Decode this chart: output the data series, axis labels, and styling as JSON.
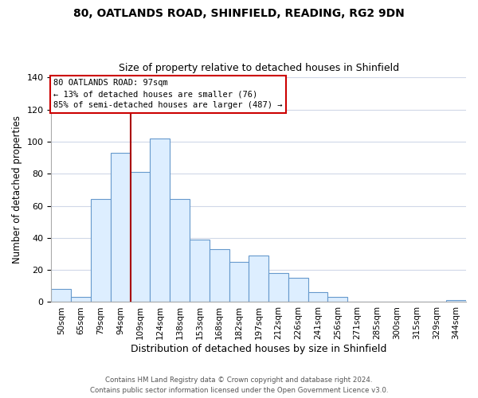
{
  "title": "80, OATLANDS ROAD, SHINFIELD, READING, RG2 9DN",
  "subtitle": "Size of property relative to detached houses in Shinfield",
  "xlabel": "Distribution of detached houses by size in Shinfield",
  "ylabel": "Number of detached properties",
  "footer_line1": "Contains HM Land Registry data © Crown copyright and database right 2024.",
  "footer_line2": "Contains public sector information licensed under the Open Government Licence v3.0.",
  "bar_labels": [
    "50sqm",
    "65sqm",
    "79sqm",
    "94sqm",
    "109sqm",
    "124sqm",
    "138sqm",
    "153sqm",
    "168sqm",
    "182sqm",
    "197sqm",
    "212sqm",
    "226sqm",
    "241sqm",
    "256sqm",
    "271sqm",
    "285sqm",
    "300sqm",
    "315sqm",
    "329sqm",
    "344sqm"
  ],
  "bar_values": [
    8,
    3,
    64,
    93,
    81,
    102,
    64,
    39,
    33,
    25,
    29,
    18,
    15,
    6,
    3,
    0,
    0,
    0,
    0,
    0,
    1
  ],
  "bar_color": "#ddeeff",
  "bar_edge_color": "#6699cc",
  "ylim": [
    0,
    140
  ],
  "yticks": [
    0,
    20,
    40,
    60,
    80,
    100,
    120,
    140
  ],
  "vline_color": "#aa0000",
  "annotation_title": "80 OATLANDS ROAD: 97sqm",
  "annotation_line1": "← 13% of detached houses are smaller (76)",
  "annotation_line2": "85% of semi-detached houses are larger (487) →",
  "annotation_box_color": "#ffffff",
  "annotation_box_edge": "#cc0000",
  "grid_color": "#d0d8e8",
  "background_color": "#ffffff"
}
